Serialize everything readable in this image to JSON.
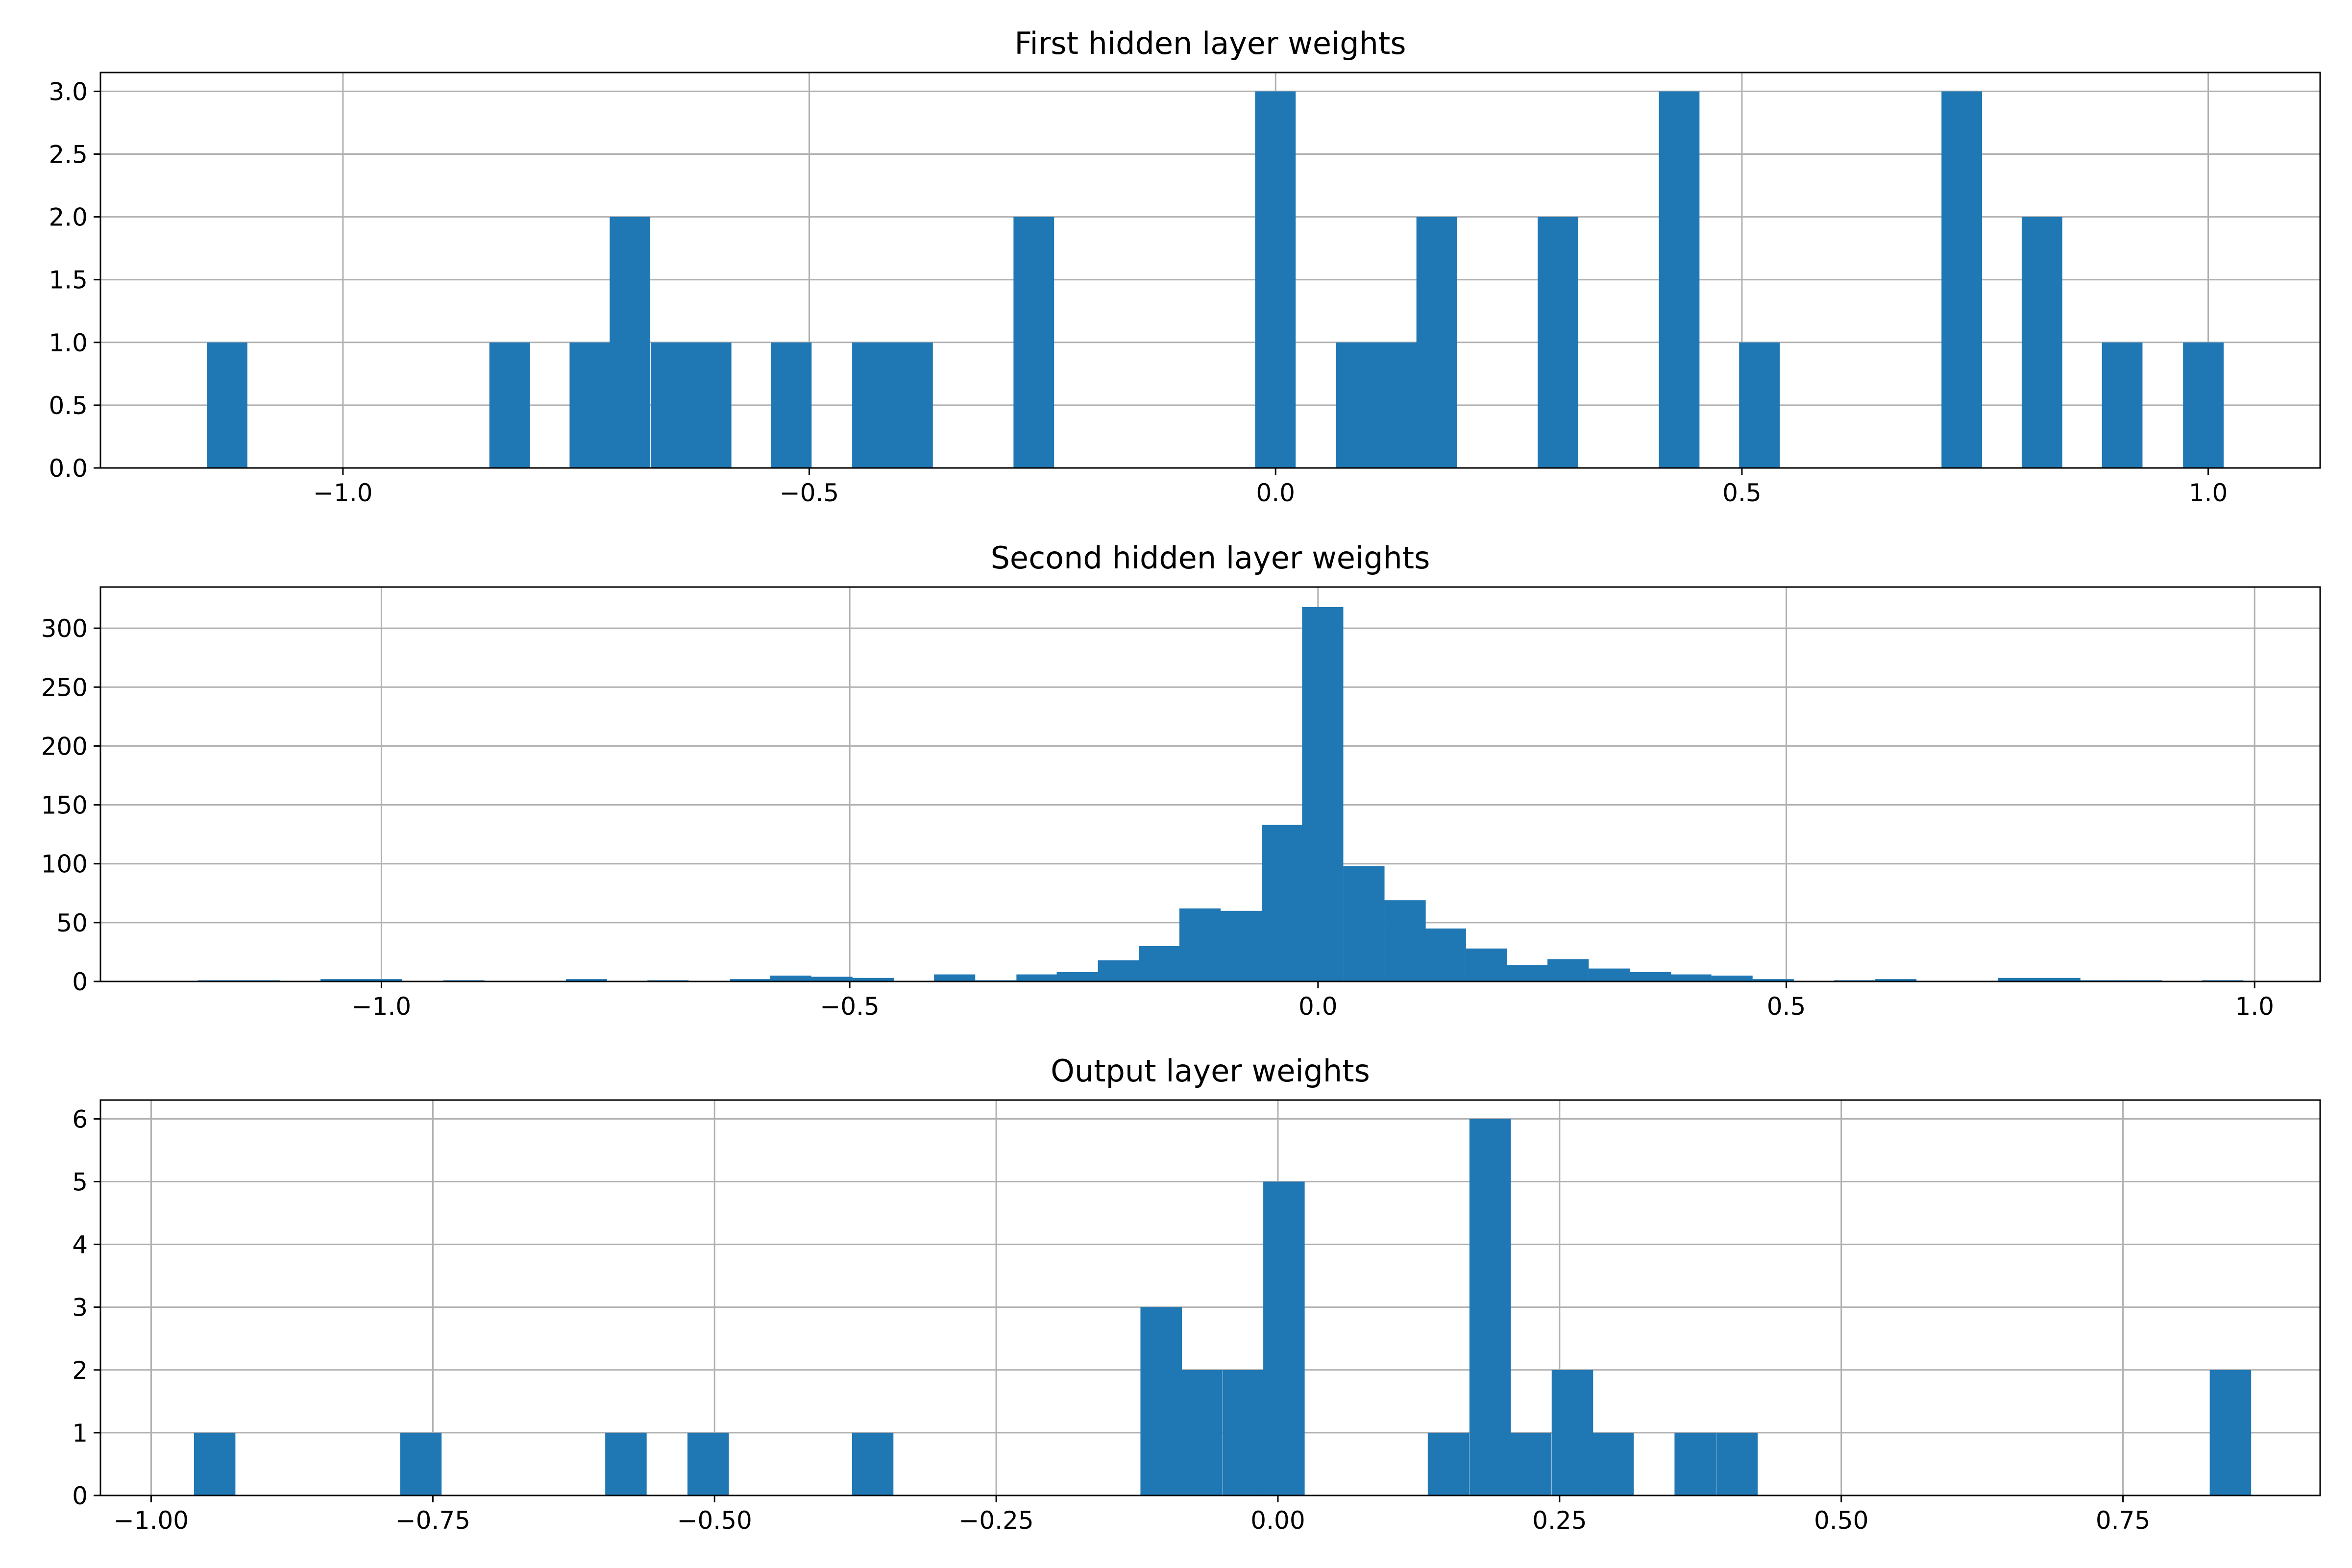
{
  "chart_data": [
    {
      "type": "bar",
      "title": "First hidden layer weights",
      "xlabel": "",
      "ylabel": "",
      "xlim": [
        -1.26,
        1.12
      ],
      "ylim": [
        0,
        3.15
      ],
      "grid": true,
      "color": "#1f77b4",
      "xticks": [
        -1.0,
        -0.5,
        0.0,
        0.5,
        1.0
      ],
      "xtick_labels": [
        "−1.0",
        "−0.5",
        "0.0",
        "0.5",
        "1.0"
      ],
      "yticks": [
        0,
        0.5,
        1,
        1.5,
        2,
        2.5,
        3
      ],
      "ytick_labels": [
        "0.0",
        "0.5",
        "1.0",
        "1.5",
        "2.0",
        "2.5",
        "3.0"
      ],
      "bin_width": 0.0432,
      "bins": [
        {
          "x0": -1.146,
          "count": 1
        },
        {
          "x0": -0.843,
          "count": 1
        },
        {
          "x0": -0.757,
          "count": 1
        },
        {
          "x0": -0.714,
          "count": 2
        },
        {
          "x0": -0.67,
          "count": 1
        },
        {
          "x0": -0.627,
          "count": 1
        },
        {
          "x0": -0.541,
          "count": 1
        },
        {
          "x0": -0.454,
          "count": 1
        },
        {
          "x0": -0.411,
          "count": 1
        },
        {
          "x0": -0.281,
          "count": 2
        },
        {
          "x0": -0.022,
          "count": 3
        },
        {
          "x0": 0.065,
          "count": 1
        },
        {
          "x0": 0.108,
          "count": 1
        },
        {
          "x0": 0.151,
          "count": 2
        },
        {
          "x0": 0.281,
          "count": 2
        },
        {
          "x0": 0.411,
          "count": 3
        },
        {
          "x0": 0.497,
          "count": 1
        },
        {
          "x0": 0.714,
          "count": 3
        },
        {
          "x0": 0.8,
          "count": 2
        },
        {
          "x0": 0.886,
          "count": 1
        },
        {
          "x0": 0.973,
          "count": 1
        }
      ]
    },
    {
      "type": "bar",
      "title": "Second hidden layer weights",
      "xlabel": "",
      "ylabel": "",
      "xlim": [
        -1.3,
        1.07
      ],
      "ylim": [
        0,
        335
      ],
      "grid": true,
      "color": "#1f77b4",
      "xticks": [
        -1.0,
        -0.5,
        0.0,
        0.5,
        1.0
      ],
      "xtick_labels": [
        "−1.0",
        "−0.5",
        "0.0",
        "0.5",
        "1.0"
      ],
      "yticks": [
        0,
        50,
        100,
        150,
        200,
        250,
        300
      ],
      "ytick_labels": [
        "0",
        "50",
        "100",
        "150",
        "200",
        "250",
        "300"
      ],
      "bin_width": 0.0437,
      "bins": [
        {
          "x0": -1.196,
          "count": 1
        },
        {
          "x0": -1.152,
          "count": 1
        },
        {
          "x0": -1.065,
          "count": 2
        },
        {
          "x0": -1.022,
          "count": 2
        },
        {
          "x0": -0.934,
          "count": 1
        },
        {
          "x0": -0.803,
          "count": 2
        },
        {
          "x0": -0.716,
          "count": 1
        },
        {
          "x0": -0.628,
          "count": 2
        },
        {
          "x0": -0.585,
          "count": 5
        },
        {
          "x0": -0.541,
          "count": 4
        },
        {
          "x0": -0.497,
          "count": 3
        },
        {
          "x0": -0.41,
          "count": 6
        },
        {
          "x0": -0.366,
          "count": 1
        },
        {
          "x0": -0.322,
          "count": 6
        },
        {
          "x0": -0.279,
          "count": 8
        },
        {
          "x0": -0.235,
          "count": 18
        },
        {
          "x0": -0.191,
          "count": 30
        },
        {
          "x0": -0.148,
          "count": 62
        },
        {
          "x0": -0.104,
          "count": 60
        },
        {
          "x0": -0.06,
          "count": 133
        },
        {
          "x0": -0.017,
          "count": 318
        },
        {
          "x0": 0.027,
          "count": 98
        },
        {
          "x0": 0.071,
          "count": 69
        },
        {
          "x0": 0.114,
          "count": 45
        },
        {
          "x0": 0.158,
          "count": 28
        },
        {
          "x0": 0.202,
          "count": 14
        },
        {
          "x0": 0.245,
          "count": 19
        },
        {
          "x0": 0.289,
          "count": 11
        },
        {
          "x0": 0.333,
          "count": 8
        },
        {
          "x0": 0.376,
          "count": 6
        },
        {
          "x0": 0.42,
          "count": 5
        },
        {
          "x0": 0.464,
          "count": 2
        },
        {
          "x0": 0.551,
          "count": 1
        },
        {
          "x0": 0.595,
          "count": 2
        },
        {
          "x0": 0.726,
          "count": 3
        },
        {
          "x0": 0.77,
          "count": 3
        },
        {
          "x0": 0.813,
          "count": 1
        },
        {
          "x0": 0.857,
          "count": 1
        },
        {
          "x0": 0.944,
          "count": 1
        }
      ]
    },
    {
      "type": "bar",
      "title": "Output layer weights",
      "xlabel": "",
      "ylabel": "",
      "xlim": [
        -1.045,
        0.925
      ],
      "ylim": [
        0,
        6.3
      ],
      "grid": true,
      "color": "#1f77b4",
      "xticks": [
        -1.0,
        -0.75,
        -0.5,
        -0.25,
        0.0,
        0.25,
        0.5,
        0.75
      ],
      "xtick_labels": [
        "−1.00",
        "−0.75",
        "−0.50",
        "−0.25",
        "0.00",
        "0.25",
        "0.50",
        "0.75"
      ],
      "yticks": [
        0,
        1,
        2,
        3,
        4,
        5,
        6
      ],
      "ytick_labels": [
        "0",
        "1",
        "2",
        "3",
        "4",
        "5",
        "6"
      ],
      "bin_width": 0.0365,
      "bins": [
        {
          "x0": -0.962,
          "count": 1
        },
        {
          "x0": -0.779,
          "count": 1
        },
        {
          "x0": -0.597,
          "count": 1
        },
        {
          "x0": -0.524,
          "count": 1
        },
        {
          "x0": -0.378,
          "count": 1
        },
        {
          "x0": -0.122,
          "count": 3
        },
        {
          "x0": -0.086,
          "count": 2
        },
        {
          "x0": -0.049,
          "count": 2
        },
        {
          "x0": -0.013,
          "count": 5
        },
        {
          "x0": 0.133,
          "count": 1
        },
        {
          "x0": 0.17,
          "count": 6
        },
        {
          "x0": 0.206,
          "count": 1
        },
        {
          "x0": 0.243,
          "count": 2
        },
        {
          "x0": 0.279,
          "count": 1
        },
        {
          "x0": 0.352,
          "count": 1
        },
        {
          "x0": 0.389,
          "count": 1
        },
        {
          "x0": 0.827,
          "count": 2
        }
      ]
    }
  ]
}
